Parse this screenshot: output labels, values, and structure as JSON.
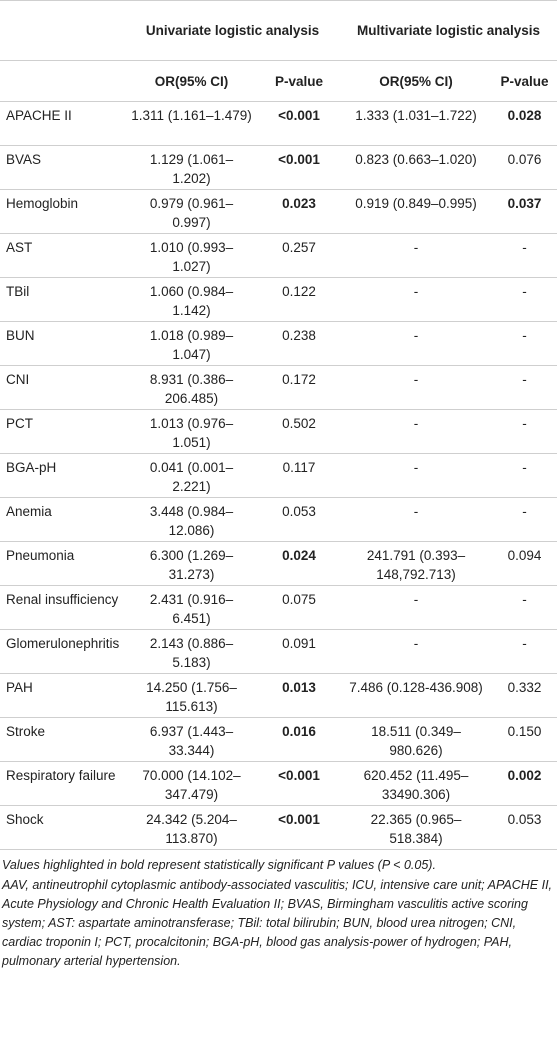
{
  "table": {
    "group_headers": [
      "Univariate logistic analysis",
      "Multivariate logistic analysis"
    ],
    "sub_headers": [
      "OR(95% CI)",
      "P-value",
      "OR(95% CI)",
      "P-value"
    ],
    "rows": [
      {
        "cells": [
          "APACHE II",
          "1.311 (1.161–1.479)",
          "<0.001",
          "1.333 (1.031–1.722)",
          "0.028"
        ],
        "bold": [
          false,
          false,
          true,
          false,
          true
        ]
      },
      {
        "cells": [
          "BVAS",
          "1.129 (1.061–1.202)",
          "<0.001",
          "0.823 (0.663–1.020)",
          "0.076"
        ],
        "bold": [
          false,
          false,
          true,
          false,
          false
        ]
      },
      {
        "cells": [
          "Hemoglobin",
          "0.979 (0.961–0.997)",
          "0.023",
          "0.919 (0.849–0.995)",
          "0.037"
        ],
        "bold": [
          false,
          false,
          true,
          false,
          true
        ]
      },
      {
        "cells": [
          "AST",
          "1.010 (0.993–1.027)",
          "0.257",
          "-",
          "-"
        ],
        "bold": [
          false,
          false,
          false,
          false,
          false
        ]
      },
      {
        "cells": [
          "TBil",
          "1.060 (0.984–1.142)",
          "0.122",
          "-",
          "-"
        ],
        "bold": [
          false,
          false,
          false,
          false,
          false
        ]
      },
      {
        "cells": [
          "BUN",
          "1.018 (0.989–1.047)",
          "0.238",
          "-",
          "-"
        ],
        "bold": [
          false,
          false,
          false,
          false,
          false
        ]
      },
      {
        "cells": [
          "CNI",
          "8.931 (0.386–206.485)",
          "0.172",
          "-",
          "-"
        ],
        "bold": [
          false,
          false,
          false,
          false,
          false
        ]
      },
      {
        "cells": [
          "PCT",
          "1.013 (0.976–1.051)",
          "0.502",
          "-",
          "-"
        ],
        "bold": [
          false,
          false,
          false,
          false,
          false
        ]
      },
      {
        "cells": [
          "BGA-pH",
          "0.041 (0.001–2.221)",
          "0.117",
          "-",
          "-"
        ],
        "bold": [
          false,
          false,
          false,
          false,
          false
        ]
      },
      {
        "cells": [
          "Anemia",
          "3.448 (0.984–12.086)",
          "0.053",
          "-",
          "-"
        ],
        "bold": [
          false,
          false,
          false,
          false,
          false
        ]
      },
      {
        "cells": [
          "Pneumonia",
          "6.300 (1.269–31.273)",
          "0.024",
          "241.791 (0.393–148,792.713)",
          "0.094"
        ],
        "bold": [
          false,
          false,
          true,
          false,
          false
        ]
      },
      {
        "cells": [
          "Renal insufficiency",
          "2.431 (0.916–6.451)",
          "0.075",
          "-",
          "-"
        ],
        "bold": [
          false,
          false,
          false,
          false,
          false
        ]
      },
      {
        "cells": [
          "Glomerulonephritis",
          "2.143 (0.886–5.183)",
          "0.091",
          "-",
          "-"
        ],
        "bold": [
          false,
          false,
          false,
          false,
          false
        ]
      },
      {
        "cells": [
          "PAH",
          "14.250 (1.756–115.613)",
          "0.013",
          "7.486 (0.128-436.908)",
          "0.332"
        ],
        "bold": [
          false,
          false,
          true,
          false,
          false
        ]
      },
      {
        "cells": [
          "Stroke",
          "6.937 (1.443–33.344)",
          "0.016",
          "18.511 (0.349–980.626)",
          "0.150"
        ],
        "bold": [
          false,
          false,
          true,
          false,
          false
        ]
      },
      {
        "cells": [
          "Respiratory failure",
          "70.000 (14.102–347.479)",
          "<0.001",
          "620.452 (11.495–33490.306)",
          "0.002"
        ],
        "bold": [
          false,
          false,
          true,
          false,
          true
        ]
      },
      {
        "cells": [
          "Shock",
          "24.342 (5.204–113.870)",
          "<0.001",
          "22.365 (0.965–518.384)",
          "0.053"
        ],
        "bold": [
          false,
          false,
          true,
          false,
          false
        ]
      }
    ],
    "footnotes": [
      "Values highlighted in bold represent statistically significant P values (P < 0.05).",
      "AAV, antineutrophil cytoplasmic antibody-associated vasculitis; ICU, intensive care unit; APACHE II, Acute Physiology and Chronic Health Evaluation II; BVAS, Birmingham vasculitis active scoring system; AST: aspartate aminotransferase; TBil: total bilirubin; BUN, blood urea nitrogen; CNI, cardiac troponin I; PCT, procalcitonin; BGA-pH, blood gas analysis-power of hydrogen; PAH, pulmonary arterial hypertension."
    ]
  }
}
